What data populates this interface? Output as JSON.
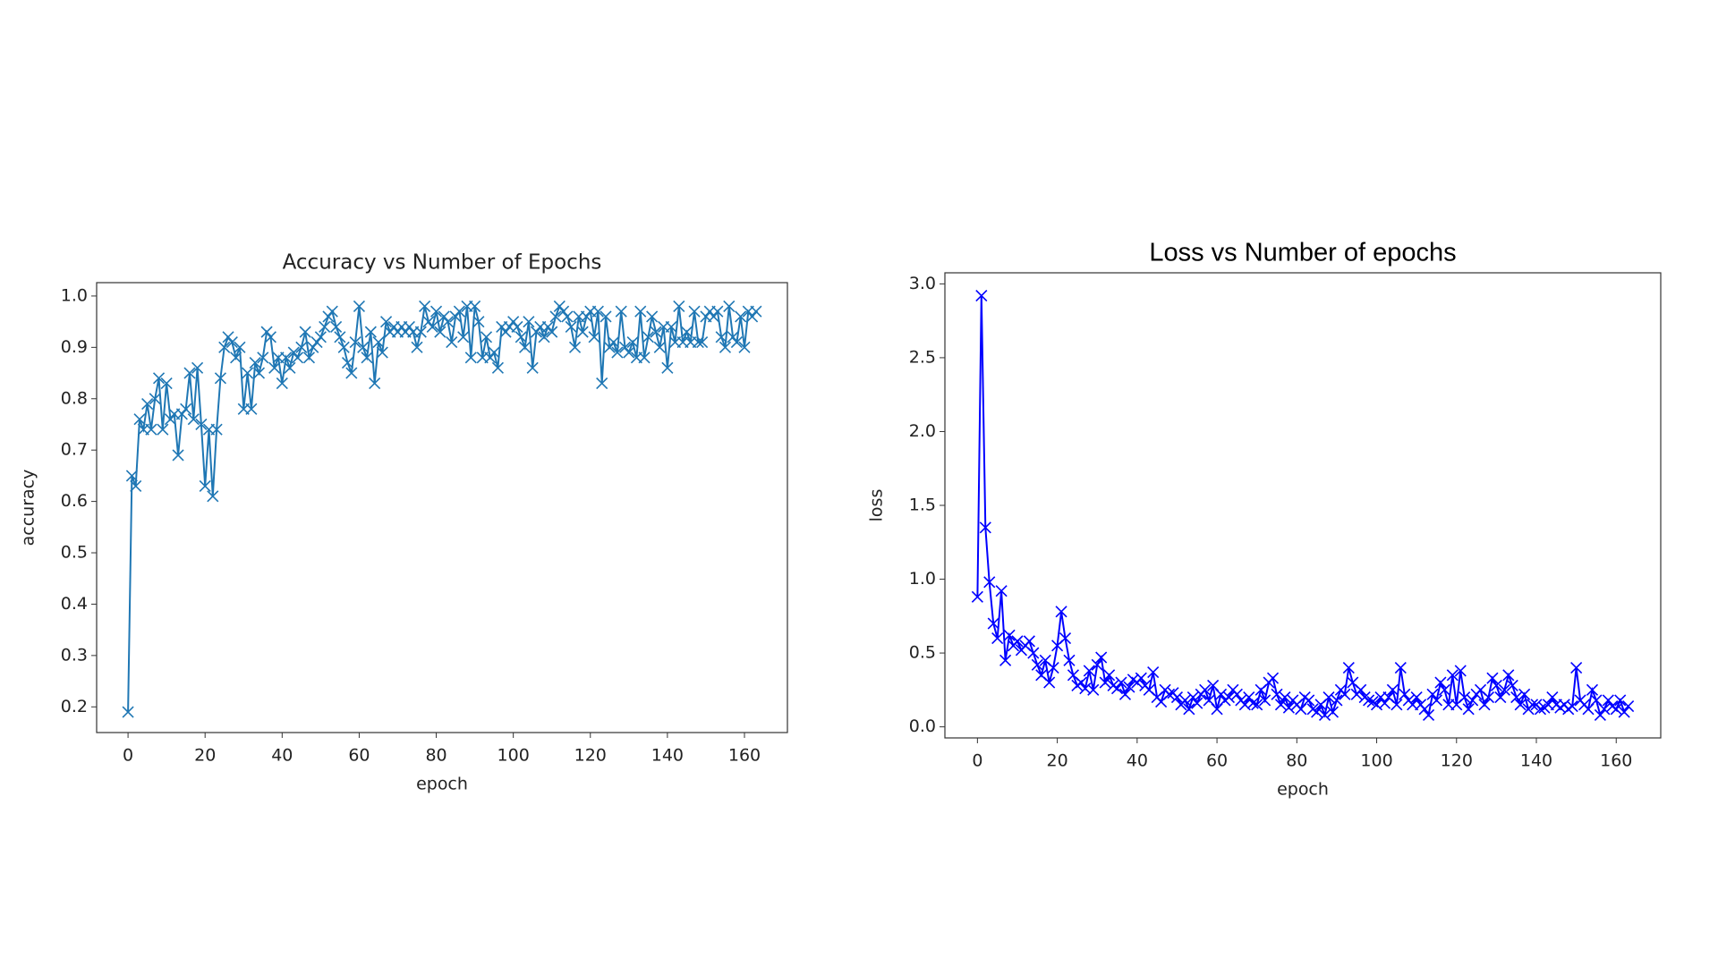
{
  "chart_data": [
    {
      "type": "line",
      "title": "Accuracy vs Number of Epochs",
      "x_label": "epoch",
      "y_label": "accuracy",
      "color": "#1f77b4",
      "marker": "x",
      "x": [
        0,
        1,
        2,
        3,
        4,
        5,
        6,
        7,
        8,
        9,
        10,
        11,
        12,
        13,
        14,
        15,
        16,
        17,
        18,
        19,
        20,
        21,
        22,
        23,
        24,
        25,
        26,
        27,
        28,
        29,
        30,
        31,
        32,
        33,
        34,
        35,
        36,
        37,
        38,
        39,
        40,
        41,
        42,
        43,
        44,
        45,
        46,
        47,
        48,
        49,
        50,
        51,
        52,
        53,
        54,
        55,
        56,
        57,
        58,
        59,
        60,
        61,
        62,
        63,
        64,
        65,
        66,
        67,
        68,
        69,
        70,
        71,
        72,
        73,
        74,
        75,
        76,
        77,
        78,
        79,
        80,
        81,
        82,
        83,
        84,
        85,
        86,
        87,
        88,
        89,
        90,
        91,
        92,
        93,
        94,
        95,
        96,
        97,
        98,
        99,
        100,
        101,
        102,
        103,
        104,
        105,
        106,
        107,
        108,
        109,
        110,
        111,
        112,
        113,
        114,
        115,
        116,
        117,
        118,
        119,
        120,
        121,
        122,
        123,
        124,
        125,
        126,
        127,
        128,
        129,
        130,
        131,
        132,
        133,
        134,
        135,
        136,
        137,
        138,
        139,
        140,
        141,
        142,
        143,
        144,
        145,
        146,
        147,
        148,
        149,
        150,
        151,
        152,
        153,
        154,
        155,
        156,
        157,
        158,
        159,
        160,
        161,
        162,
        163
      ],
      "values": [
        0.19,
        0.65,
        0.63,
        0.76,
        0.74,
        0.79,
        0.74,
        0.8,
        0.84,
        0.74,
        0.83,
        0.76,
        0.77,
        0.69,
        0.77,
        0.78,
        0.85,
        0.76,
        0.86,
        0.75,
        0.63,
        0.74,
        0.61,
        0.74,
        0.84,
        0.9,
        0.92,
        0.91,
        0.88,
        0.9,
        0.78,
        0.85,
        0.78,
        0.87,
        0.85,
        0.88,
        0.93,
        0.92,
        0.86,
        0.88,
        0.83,
        0.88,
        0.86,
        0.89,
        0.88,
        0.9,
        0.93,
        0.88,
        0.9,
        0.91,
        0.92,
        0.94,
        0.96,
        0.97,
        0.94,
        0.92,
        0.9,
        0.87,
        0.85,
        0.91,
        0.98,
        0.9,
        0.88,
        0.93,
        0.83,
        0.91,
        0.89,
        0.95,
        0.93,
        0.94,
        0.93,
        0.94,
        0.93,
        0.94,
        0.93,
        0.9,
        0.93,
        0.98,
        0.95,
        0.94,
        0.97,
        0.93,
        0.96,
        0.95,
        0.91,
        0.96,
        0.97,
        0.92,
        0.98,
        0.88,
        0.98,
        0.95,
        0.88,
        0.92,
        0.88,
        0.89,
        0.86,
        0.94,
        0.93,
        0.94,
        0.95,
        0.94,
        0.92,
        0.9,
        0.95,
        0.86,
        0.93,
        0.94,
        0.92,
        0.94,
        0.93,
        0.96,
        0.98,
        0.97,
        0.96,
        0.94,
        0.9,
        0.96,
        0.93,
        0.96,
        0.97,
        0.92,
        0.97,
        0.83,
        0.96,
        0.9,
        0.91,
        0.89,
        0.97,
        0.9,
        0.89,
        0.91,
        0.88,
        0.97,
        0.88,
        0.92,
        0.96,
        0.93,
        0.9,
        0.94,
        0.86,
        0.94,
        0.91,
        0.98,
        0.91,
        0.93,
        0.91,
        0.97,
        0.91,
        0.91,
        0.96,
        0.97,
        0.96,
        0.97,
        0.92,
        0.9,
        0.98,
        0.92,
        0.91,
        0.96,
        0.9,
        0.97,
        0.96,
        0.97
      ],
      "xlim": [
        -8.15,
        171.15
      ],
      "ylim": [
        0.15,
        1.026
      ],
      "xticks": [
        0,
        20,
        40,
        60,
        80,
        100,
        120,
        140,
        160
      ],
      "yticks": [
        0.2,
        0.3,
        0.4,
        0.5,
        0.6,
        0.7,
        0.8,
        0.9,
        {
          "value": 1,
          "label": "1.0"
        }
      ]
    },
    {
      "type": "line",
      "title": "Loss vs Number of epochs",
      "x_label": "epoch",
      "y_label": "loss",
      "color": "#0000ff",
      "marker": "x",
      "x": [
        0,
        1,
        2,
        3,
        4,
        5,
        6,
        7,
        8,
        9,
        10,
        11,
        12,
        13,
        14,
        15,
        16,
        17,
        18,
        19,
        20,
        21,
        22,
        23,
        24,
        25,
        26,
        27,
        28,
        29,
        30,
        31,
        32,
        33,
        34,
        35,
        36,
        37,
        38,
        39,
        40,
        41,
        42,
        43,
        44,
        45,
        46,
        47,
        48,
        49,
        50,
        51,
        52,
        53,
        54,
        55,
        56,
        57,
        58,
        59,
        60,
        61,
        62,
        63,
        64,
        65,
        66,
        67,
        68,
        69,
        70,
        71,
        72,
        73,
        74,
        75,
        76,
        77,
        78,
        79,
        80,
        81,
        82,
        83,
        84,
        85,
        86,
        87,
        88,
        89,
        90,
        91,
        92,
        93,
        94,
        95,
        96,
        97,
        98,
        99,
        100,
        101,
        102,
        103,
        104,
        105,
        106,
        107,
        108,
        109,
        110,
        111,
        112,
        113,
        114,
        115,
        116,
        117,
        118,
        119,
        120,
        121,
        122,
        123,
        124,
        125,
        126,
        127,
        128,
        129,
        130,
        131,
        132,
        133,
        134,
        135,
        136,
        137,
        138,
        139,
        140,
        141,
        142,
        143,
        144,
        145,
        146,
        147,
        148,
        149,
        150,
        151,
        152,
        153,
        154,
        155,
        156,
        157,
        158,
        159,
        160,
        161,
        162,
        163
      ],
      "values": [
        0.88,
        2.92,
        1.35,
        0.98,
        0.7,
        0.6,
        0.92,
        0.45,
        0.62,
        0.55,
        0.58,
        0.52,
        0.55,
        0.58,
        0.5,
        0.42,
        0.35,
        0.45,
        0.3,
        0.4,
        0.55,
        0.78,
        0.6,
        0.45,
        0.35,
        0.28,
        0.3,
        0.26,
        0.38,
        0.25,
        0.42,
        0.47,
        0.3,
        0.35,
        0.28,
        0.26,
        0.3,
        0.22,
        0.27,
        0.32,
        0.3,
        0.33,
        0.28,
        0.25,
        0.37,
        0.2,
        0.17,
        0.25,
        0.22,
        0.23,
        0.2,
        0.15,
        0.18,
        0.12,
        0.2,
        0.16,
        0.22,
        0.25,
        0.18,
        0.28,
        0.12,
        0.22,
        0.18,
        0.2,
        0.25,
        0.22,
        0.18,
        0.15,
        0.2,
        0.16,
        0.15,
        0.25,
        0.18,
        0.3,
        0.33,
        0.22,
        0.15,
        0.2,
        0.13,
        0.18,
        0.15,
        0.12,
        0.2,
        0.18,
        0.12,
        0.1,
        0.15,
        0.08,
        0.2,
        0.1,
        0.18,
        0.25,
        0.22,
        0.4,
        0.3,
        0.22,
        0.25,
        0.2,
        0.18,
        0.17,
        0.15,
        0.2,
        0.16,
        0.2,
        0.25,
        0.15,
        0.4,
        0.22,
        0.18,
        0.15,
        0.2,
        0.15,
        0.12,
        0.08,
        0.22,
        0.18,
        0.3,
        0.25,
        0.15,
        0.35,
        0.15,
        0.38,
        0.2,
        0.12,
        0.18,
        0.22,
        0.25,
        0.15,
        0.2,
        0.33,
        0.28,
        0.2,
        0.25,
        0.35,
        0.28,
        0.2,
        0.15,
        0.22,
        0.12,
        0.15,
        0.15,
        0.12,
        0.13,
        0.15,
        0.2,
        0.15,
        0.13,
        0.15,
        0.12,
        0.14,
        0.4,
        0.18,
        0.15,
        0.12,
        0.25,
        0.18,
        0.08,
        0.12,
        0.18,
        0.14,
        0.12,
        0.18,
        0.1,
        0.14
      ],
      "xlim": [
        -8.15,
        171.15
      ],
      "ylim": [
        -0.075,
        3.075
      ],
      "xticks": [
        0,
        20,
        40,
        60,
        80,
        100,
        120,
        140,
        160
      ],
      "yticks": [
        {
          "value": 0,
          "label": "0.0"
        },
        0.5,
        {
          "value": 1,
          "label": "1.0"
        },
        1.5,
        {
          "value": 2,
          "label": "2.0"
        },
        2.5,
        {
          "value": 3,
          "label": "3.0"
        }
      ]
    }
  ]
}
